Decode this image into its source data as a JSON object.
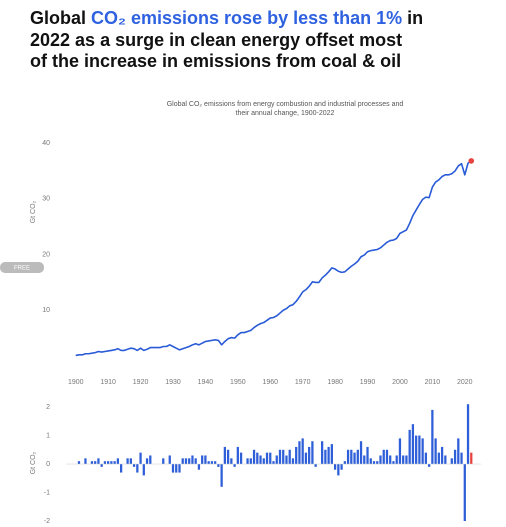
{
  "chart_data": [
    {
      "type": "line",
      "title": {
        "line1": [
          "Global ",
          "CO₂ emissions rose by less than 1%",
          " in"
        ],
        "line2": "2022 as a surge in clean energy offset most",
        "line3": "of the increase in emissions from coal & oil",
        "highlight_color": "#2f62e0"
      },
      "subtitle": [
        "Global CO₂ emissions from energy combustion and industrial processes and",
        "their annual change, 1900-2022"
      ],
      "side_tag": "FREE",
      "y_label": "Gt CO₂",
      "color": "#2a5bd7",
      "highlight_color": "#e8423f",
      "x": [
        1900,
        1901,
        1902,
        1903,
        1904,
        1905,
        1906,
        1907,
        1908,
        1909,
        1910,
        1911,
        1912,
        1913,
        1914,
        1915,
        1916,
        1917,
        1918,
        1919,
        1920,
        1921,
        1922,
        1923,
        1924,
        1925,
        1926,
        1927,
        1928,
        1929,
        1930,
        1931,
        1932,
        1933,
        1934,
        1935,
        1936,
        1937,
        1938,
        1939,
        1940,
        1941,
        1942,
        1943,
        1944,
        1945,
        1946,
        1947,
        1948,
        1949,
        1950,
        1951,
        1952,
        1953,
        1954,
        1955,
        1956,
        1957,
        1958,
        1959,
        1960,
        1961,
        1962,
        1963,
        1964,
        1965,
        1966,
        1967,
        1968,
        1969,
        1970,
        1971,
        1972,
        1973,
        1974,
        1975,
        1976,
        1977,
        1978,
        1979,
        1980,
        1981,
        1982,
        1983,
        1984,
        1985,
        1986,
        1987,
        1988,
        1989,
        1990,
        1991,
        1992,
        1993,
        1994,
        1995,
        1996,
        1997,
        1998,
        1999,
        2000,
        2001,
        2002,
        2003,
        2004,
        2005,
        2006,
        2007,
        2008,
        2009,
        2010,
        2011,
        2012,
        2013,
        2014,
        2015,
        2016,
        2017,
        2018,
        2019,
        2020,
        2021,
        2022
      ],
      "values": [
        1.9,
        2.0,
        2.0,
        2.2,
        2.2,
        2.3,
        2.4,
        2.6,
        2.5,
        2.6,
        2.7,
        2.8,
        2.9,
        3.1,
        2.8,
        2.8,
        3.0,
        3.2,
        3.1,
        2.8,
        3.2,
        2.8,
        3.0,
        3.3,
        3.3,
        3.3,
        3.3,
        3.5,
        3.5,
        3.8,
        3.5,
        3.2,
        2.9,
        3.1,
        3.3,
        3.5,
        3.8,
        4.0,
        3.8,
        4.1,
        4.4,
        4.5,
        4.6,
        4.7,
        4.6,
        3.8,
        4.4,
        4.9,
        5.1,
        5.0,
        5.6,
        6.0,
        6.0,
        6.2,
        6.4,
        6.9,
        7.3,
        7.6,
        7.8,
        8.2,
        8.6,
        8.7,
        9.0,
        9.5,
        10.0,
        10.3,
        10.8,
        11.0,
        11.6,
        12.4,
        13.3,
        13.7,
        14.3,
        15.1,
        15.0,
        15.0,
        15.8,
        16.3,
        16.9,
        17.6,
        17.4,
        17.0,
        16.8,
        16.9,
        17.4,
        17.9,
        18.3,
        18.8,
        19.6,
        19.9,
        20.5,
        20.7,
        20.8,
        20.9,
        21.2,
        21.7,
        22.2,
        22.5,
        22.6,
        22.9,
        23.8,
        24.1,
        24.4,
        25.6,
        27.0,
        28.0,
        29.0,
        29.9,
        30.3,
        30.2,
        32.1,
        33.0,
        33.4,
        34.0,
        34.3,
        34.3,
        34.5,
        35.0,
        35.9,
        36.3,
        34.3,
        36.4,
        36.8
      ],
      "xlim": [
        1897,
        2025
      ],
      "xticks": [
        1900,
        1910,
        1920,
        1930,
        1940,
        1950,
        1960,
        1970,
        1980,
        1990,
        2000,
        2010,
        2020
      ],
      "ylim": [
        0,
        41
      ],
      "yticks": [
        10,
        20,
        30,
        40
      ],
      "grid": false
    },
    {
      "type": "bar",
      "y_label": "Gt CO₂",
      "color": "#2f5fd8",
      "highlight_color": "#e8423f",
      "x": [
        1901,
        1902,
        1903,
        1904,
        1905,
        1906,
        1907,
        1908,
        1909,
        1910,
        1911,
        1912,
        1913,
        1914,
        1915,
        1916,
        1917,
        1918,
        1919,
        1920,
        1921,
        1922,
        1923,
        1924,
        1925,
        1926,
        1927,
        1928,
        1929,
        1930,
        1931,
        1932,
        1933,
        1934,
        1935,
        1936,
        1937,
        1938,
        1939,
        1940,
        1941,
        1942,
        1943,
        1944,
        1945,
        1946,
        1947,
        1948,
        1949,
        1950,
        1951,
        1952,
        1953,
        1954,
        1955,
        1956,
        1957,
        1958,
        1959,
        1960,
        1961,
        1962,
        1963,
        1964,
        1965,
        1966,
        1967,
        1968,
        1969,
        1970,
        1971,
        1972,
        1973,
        1974,
        1975,
        1976,
        1977,
        1978,
        1979,
        1980,
        1981,
        1982,
        1983,
        1984,
        1985,
        1986,
        1987,
        1988,
        1989,
        1990,
        1991,
        1992,
        1993,
        1994,
        1995,
        1996,
        1997,
        1998,
        1999,
        2000,
        2001,
        2002,
        2003,
        2004,
        2005,
        2006,
        2007,
        2008,
        2009,
        2010,
        2011,
        2012,
        2013,
        2014,
        2015,
        2016,
        2017,
        2018,
        2019,
        2020,
        2021,
        2022
      ],
      "values": [
        0.1,
        0.0,
        0.2,
        0.0,
        0.1,
        0.1,
        0.2,
        -0.1,
        0.1,
        0.1,
        0.1,
        0.1,
        0.2,
        -0.3,
        0.0,
        0.2,
        0.2,
        -0.1,
        -0.3,
        0.4,
        -0.4,
        0.2,
        0.3,
        0.0,
        0.0,
        0.0,
        0.2,
        0.0,
        0.3,
        -0.3,
        -0.3,
        -0.3,
        0.2,
        0.2,
        0.2,
        0.3,
        0.2,
        -0.2,
        0.3,
        0.3,
        0.1,
        0.1,
        0.1,
        -0.1,
        -0.8,
        0.6,
        0.5,
        0.2,
        -0.1,
        0.6,
        0.4,
        0.0,
        0.2,
        0.2,
        0.5,
        0.4,
        0.3,
        0.2,
        0.4,
        0.4,
        0.1,
        0.3,
        0.5,
        0.5,
        0.3,
        0.5,
        0.2,
        0.6,
        0.8,
        0.9,
        0.4,
        0.6,
        0.8,
        -0.1,
        0.0,
        0.8,
        0.5,
        0.6,
        0.7,
        -0.2,
        -0.4,
        -0.2,
        0.1,
        0.5,
        0.5,
        0.4,
        0.5,
        0.8,
        0.3,
        0.6,
        0.2,
        0.1,
        0.1,
        0.3,
        0.5,
        0.5,
        0.3,
        0.1,
        0.3,
        0.9,
        0.3,
        0.3,
        1.2,
        1.4,
        1.0,
        1.0,
        0.9,
        0.4,
        -0.1,
        1.9,
        0.9,
        0.4,
        0.6,
        0.3,
        0.0,
        0.2,
        0.5,
        0.9,
        0.4,
        -2.0,
        2.1,
        0.4
      ],
      "xlim": [
        1897,
        2025
      ],
      "ylim": [
        -2.2,
        2.3
      ],
      "yticks": [
        2,
        1,
        0,
        -1,
        -2
      ]
    }
  ]
}
